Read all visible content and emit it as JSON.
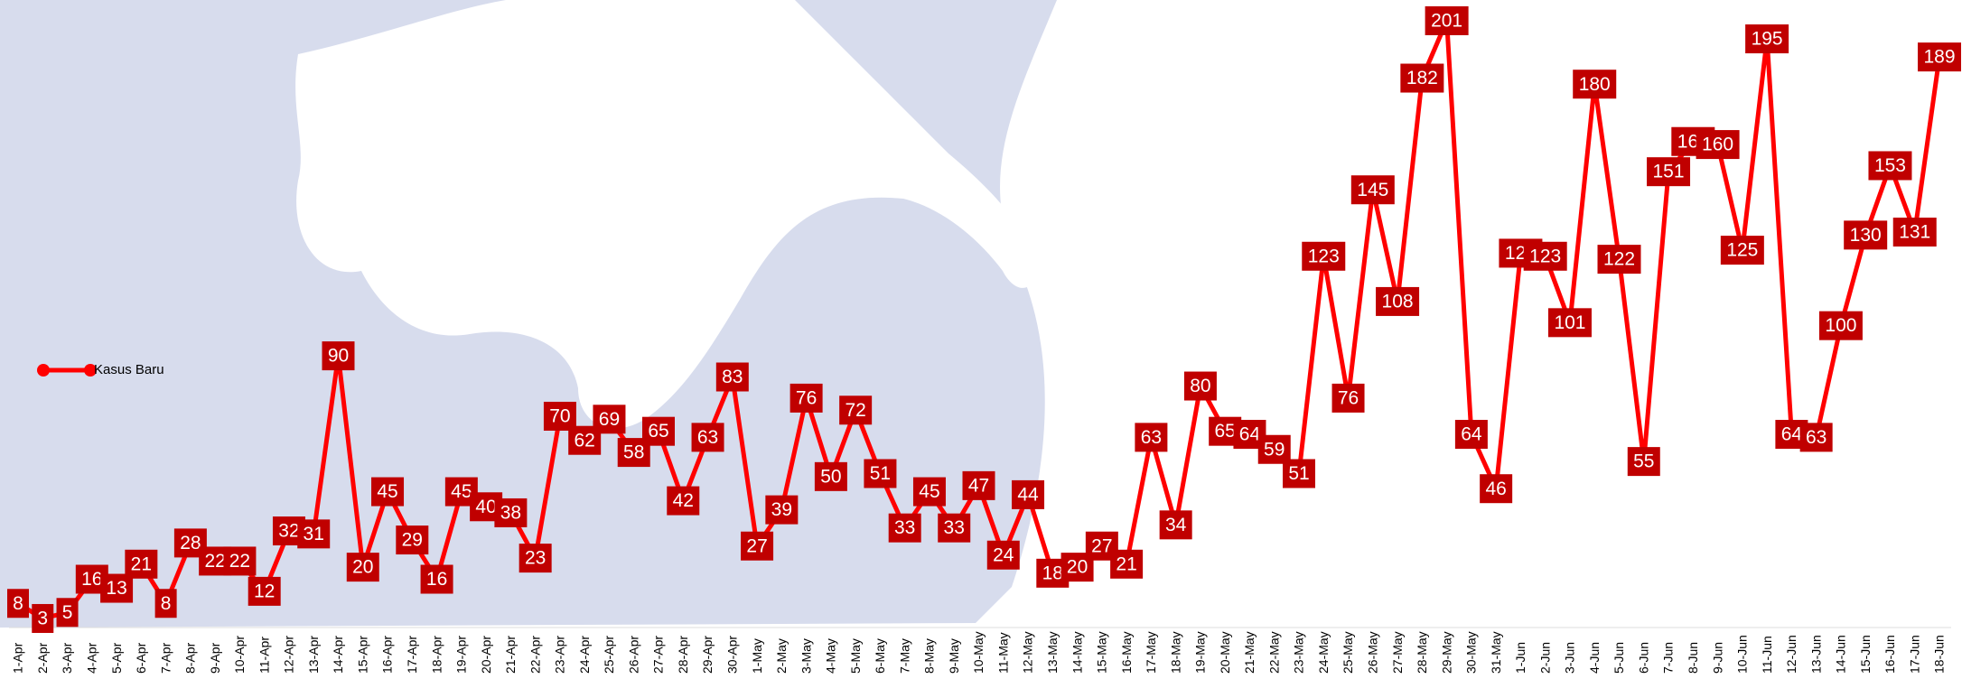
{
  "chart_data": {
    "type": "line",
    "categories": [
      "1-Apr",
      "2-Apr",
      "3-Apr",
      "4-Apr",
      "5-Apr",
      "6-Apr",
      "7-Apr",
      "8-Apr",
      "9-Apr",
      "10-Apr",
      "11-Apr",
      "12-Apr",
      "13-Apr",
      "14-Apr",
      "15-Apr",
      "16-Apr",
      "17-Apr",
      "18-Apr",
      "19-Apr",
      "20-Apr",
      "21-Apr",
      "22-Apr",
      "23-Apr",
      "24-Apr",
      "25-Apr",
      "26-Apr",
      "27-Apr",
      "28-Apr",
      "29-Apr",
      "30-Apr",
      "1-May",
      "2-May",
      "3-May",
      "4-May",
      "5-May",
      "6-May",
      "7-May",
      "8-May",
      "9-May",
      "10-May",
      "11-May",
      "12-May",
      "13-May",
      "14-May",
      "15-May",
      "16-May",
      "17-May",
      "18-May",
      "19-May",
      "20-May",
      "21-May",
      "22-May",
      "23-May",
      "24-May",
      "25-May",
      "26-May",
      "27-May",
      "28-May",
      "29-May",
      "30-May",
      "31-May",
      "1-Jun",
      "2-Jun",
      "3-Jun",
      "4-Jun",
      "5-Jun",
      "6-Jun",
      "7-Jun",
      "8-Jun",
      "9-Jun",
      "10-Jun",
      "11-Jun",
      "12-Jun",
      "13-Jun",
      "14-Jun",
      "15-Jun",
      "16-Jun",
      "17-Jun",
      "18-Jun"
    ],
    "series": [
      {
        "name": "Kasus Baru",
        "color": "#ff0000",
        "label_color": "#c00000",
        "values": [
          8,
          3,
          5,
          16,
          13,
          21,
          8,
          28,
          22,
          22,
          12,
          32,
          31,
          90,
          20,
          45,
          29,
          16,
          45,
          40,
          38,
          23,
          70,
          62,
          69,
          58,
          65,
          42,
          63,
          83,
          27,
          39,
          76,
          50,
          72,
          51,
          33,
          45,
          33,
          47,
          24,
          44,
          18,
          20,
          27,
          21,
          63,
          34,
          80,
          65,
          64,
          59,
          51,
          123,
          76,
          145,
          108,
          182,
          201,
          64,
          46,
          124,
          123,
          101,
          180,
          122,
          55,
          151,
          161,
          160,
          125,
          195,
          64,
          63,
          100,
          130,
          153,
          131,
          189
        ]
      }
    ],
    "legend": "left"
  }
}
